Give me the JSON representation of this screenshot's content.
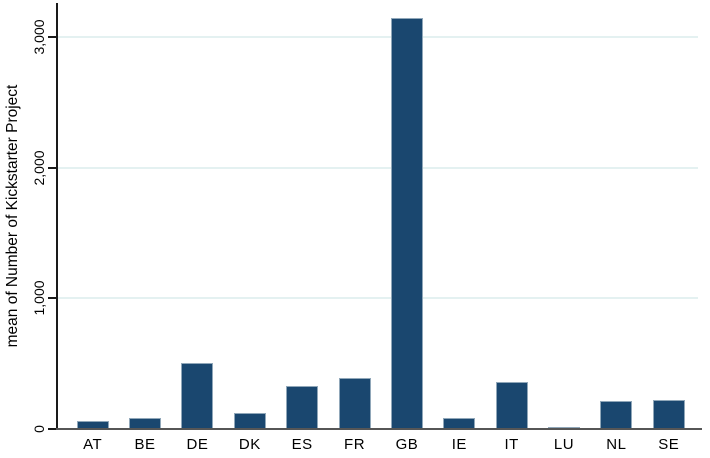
{
  "chart_data": {
    "type": "bar",
    "categories": [
      "AT",
      "BE",
      "DE",
      "DK",
      "ES",
      "FR",
      "GB",
      "IE",
      "IT",
      "LU",
      "NL",
      "SE"
    ],
    "values": [
      65,
      85,
      505,
      125,
      330,
      390,
      3150,
      85,
      360,
      12,
      217,
      225
    ],
    "title": "",
    "xlabel": "",
    "ylabel": "mean of Number of Kickstarter Project",
    "ylim": [
      0,
      3263
    ],
    "yticks": [
      {
        "value": 0,
        "label": "0"
      },
      {
        "value": 1000,
        "label": "1,000"
      },
      {
        "value": 2000,
        "label": "2,000"
      },
      {
        "value": 3000,
        "label": "3,000"
      }
    ],
    "grid": true,
    "legend": "none",
    "colors": {
      "bar_fill": "#1a476f",
      "bar_border": "#90a7b9",
      "gridline": "#e4f1f1",
      "y_axis": "#1a1a1a",
      "x_axis": "#565656",
      "text": "#000000",
      "background": "#ffffff"
    }
  }
}
